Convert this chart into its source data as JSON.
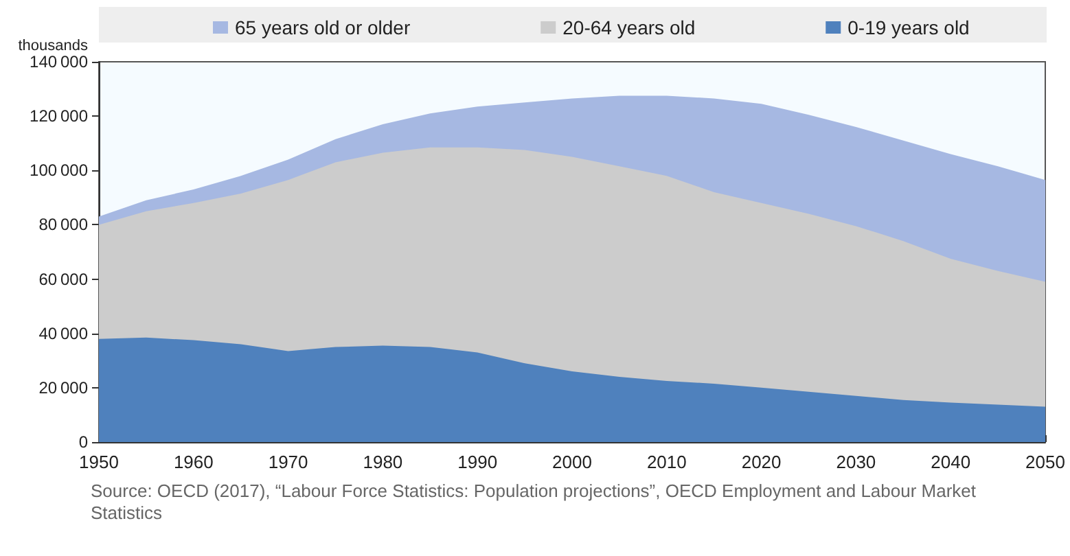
{
  "chart_data": {
    "type": "area",
    "stacked": true,
    "ylabel": "thousands",
    "x": [
      1950,
      1955,
      1960,
      1965,
      1970,
      1975,
      1980,
      1985,
      1990,
      1995,
      2000,
      2005,
      2010,
      2015,
      2020,
      2025,
      2030,
      2035,
      2040,
      2045,
      2050
    ],
    "series": [
      {
        "name": "0-19 years old",
        "color": "#4f81bd",
        "values": [
          38000,
          38500,
          37500,
          36000,
          33500,
          35000,
          35500,
          35000,
          33000,
          29000,
          26000,
          24000,
          22500,
          21500,
          20000,
          18500,
          17000,
          15500,
          14500,
          13800,
          13000
        ]
      },
      {
        "name": "20-64 years old",
        "color": "#cccccc",
        "values": [
          42000,
          46500,
          50500,
          55500,
          63000,
          68000,
          71000,
          73500,
          75500,
          78500,
          79000,
          77500,
          75500,
          70500,
          68000,
          65500,
          62500,
          58500,
          53000,
          49200,
          46000
        ]
      },
      {
        "name": "65 years old or older",
        "color": "#a6b8e2",
        "values": [
          3000,
          4000,
          5000,
          6500,
          7500,
          8500,
          10500,
          12500,
          15000,
          17500,
          21500,
          26000,
          29500,
          34500,
          36500,
          36500,
          36500,
          37000,
          38500,
          38500,
          37500
        ]
      }
    ],
    "xlim": [
      1950,
      2050
    ],
    "xticks": [
      1950,
      1960,
      1970,
      1980,
      1990,
      2000,
      2010,
      2020,
      2030,
      2040,
      2050
    ],
    "ylim": [
      0,
      140000
    ],
    "yticks": [
      0,
      20000,
      40000,
      60000,
      80000,
      100000,
      120000,
      140000
    ],
    "grid": false,
    "legend": "top",
    "marker": "none",
    "annotations": [
      "Source: OECD (2017), “Labour Force Statistics: Population projections”, OECD Employment and Labour Market Statistics"
    ]
  }
}
